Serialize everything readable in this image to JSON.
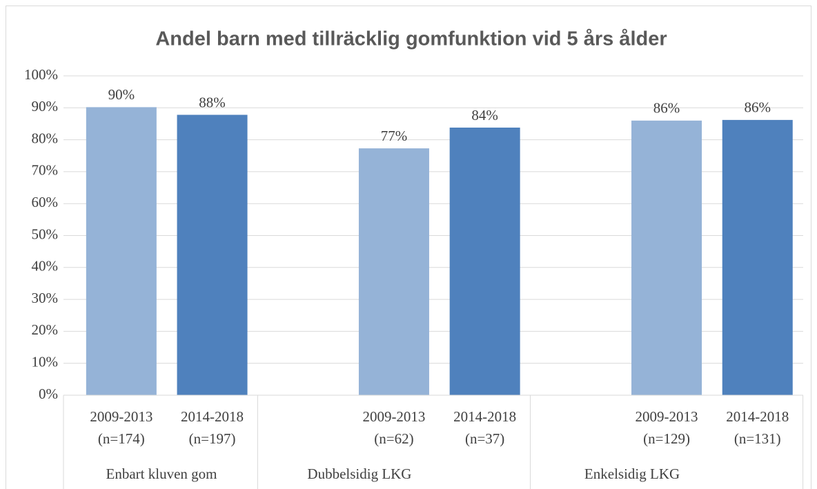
{
  "chart_data": {
    "type": "bar",
    "title": "Andel barn med tillräcklig gomfunktion vid 5 års ålder",
    "groups": [
      {
        "name": "Enbart kluven gom",
        "categories": [
          [
            "2009-2013",
            "(n=174)"
          ],
          [
            "2014-2018",
            "(n=197)"
          ]
        ],
        "values": [
          90.2,
          87.8
        ],
        "value_labels": [
          "90%",
          "88%"
        ]
      },
      {
        "name": "Dubbelsidig LKG",
        "categories": [
          [
            "2009-2013",
            "(n=62)"
          ],
          [
            "2014-2018",
            "(n=37)"
          ]
        ],
        "values": [
          77.3,
          83.8
        ],
        "value_labels": [
          "77%",
          "84%"
        ]
      },
      {
        "name": "Enkelsidig LKG",
        "categories": [
          [
            "2009-2013",
            "(n=129)"
          ],
          [
            "2014-2018",
            "(n=131)"
          ]
        ],
        "values": [
          86.0,
          86.2
        ],
        "value_labels": [
          "86%",
          "86%"
        ]
      }
    ],
    "colors": [
      "#95b3d7",
      "#4f81bd"
    ],
    "ylim": [
      0,
      100
    ],
    "yticks": [
      {
        "value": 0,
        "label": "0%"
      },
      {
        "value": 10,
        "label": "10%"
      },
      {
        "value": 20,
        "label": "20%"
      },
      {
        "value": 30,
        "label": "30%"
      },
      {
        "value": 40,
        "label": "40%"
      },
      {
        "value": 50,
        "label": "50%"
      },
      {
        "value": 60,
        "label": "60%"
      },
      {
        "value": 70,
        "label": "70%"
      },
      {
        "value": 80,
        "label": "80%"
      },
      {
        "value": 90,
        "label": "90%"
      },
      {
        "value": 100,
        "label": "100%"
      }
    ],
    "grid": true
  }
}
